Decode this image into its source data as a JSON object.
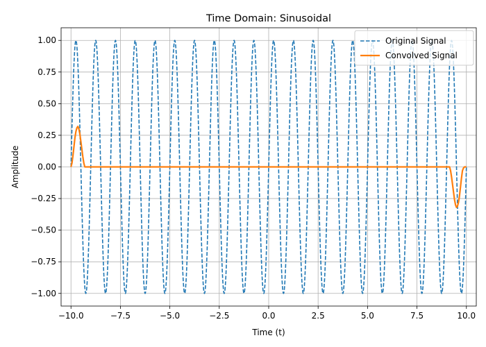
{
  "chart_data": {
    "type": "line",
    "title": "Time Domain: Sinusoidal",
    "xlabel": "Time (t)",
    "ylabel": "Amplitude",
    "xlim": [
      -10.5,
      10.5
    ],
    "ylim": [
      -1.1,
      1.1
    ],
    "xticks": [
      -10,
      -7.5,
      -5,
      -2.5,
      0,
      2.5,
      5,
      7.5,
      10
    ],
    "xtick_labels": [
      "−10.0",
      "−7.5",
      "−5.0",
      "−2.5",
      "0.0",
      "2.5",
      "5.0",
      "7.5",
      "10.0"
    ],
    "yticks": [
      1,
      0.75,
      0.5,
      0.25,
      0,
      -0.25,
      -0.5,
      -0.75,
      -1
    ],
    "ytick_labels": [
      "1.00",
      "0.75",
      "0.50",
      "0.25",
      "0.00",
      "−0.25",
      "−0.50",
      "−0.75",
      "−1.00"
    ],
    "grid": true,
    "legend_position": "top-right",
    "series": [
      {
        "name": "Original Signal",
        "color": "#1f77b4",
        "style": "dashed",
        "function": "sin(2*pi*t)",
        "x_range": [
          -10,
          10
        ]
      },
      {
        "name": "Convolved Signal",
        "color": "#ff7f0e",
        "style": "solid",
        "x": [
          -10.0,
          -9.95,
          -9.9,
          -9.85,
          -9.8,
          -9.75,
          -9.7,
          -9.65,
          -9.6,
          -9.55,
          -9.5,
          -9.45,
          -9.4,
          -9.35,
          -9.3,
          -9.25,
          -9.2,
          -9.15,
          -9.1,
          -9.05,
          -9.0,
          9.0,
          9.05,
          9.1,
          9.15,
          9.2,
          9.25,
          9.3,
          9.35,
          9.4,
          9.45,
          9.5,
          9.55,
          9.6,
          9.65,
          9.7,
          9.75,
          9.8,
          9.85,
          9.9,
          9.95,
          10.0
        ],
        "y": [
          0.0,
          0.03,
          0.09,
          0.16,
          0.23,
          0.28,
          0.31,
          0.32,
          0.3,
          0.26,
          0.2,
          0.14,
          0.08,
          0.03,
          0.0,
          0.0,
          0.0,
          0.0,
          0.0,
          0.0,
          0.0,
          0.0,
          0.0,
          0.0,
          0.0,
          -0.03,
          -0.08,
          -0.14,
          -0.2,
          -0.26,
          -0.3,
          -0.32,
          -0.31,
          -0.28,
          -0.23,
          -0.16,
          -0.09,
          -0.03,
          -0.01,
          0.0,
          0.0,
          0.0
        ]
      }
    ]
  }
}
